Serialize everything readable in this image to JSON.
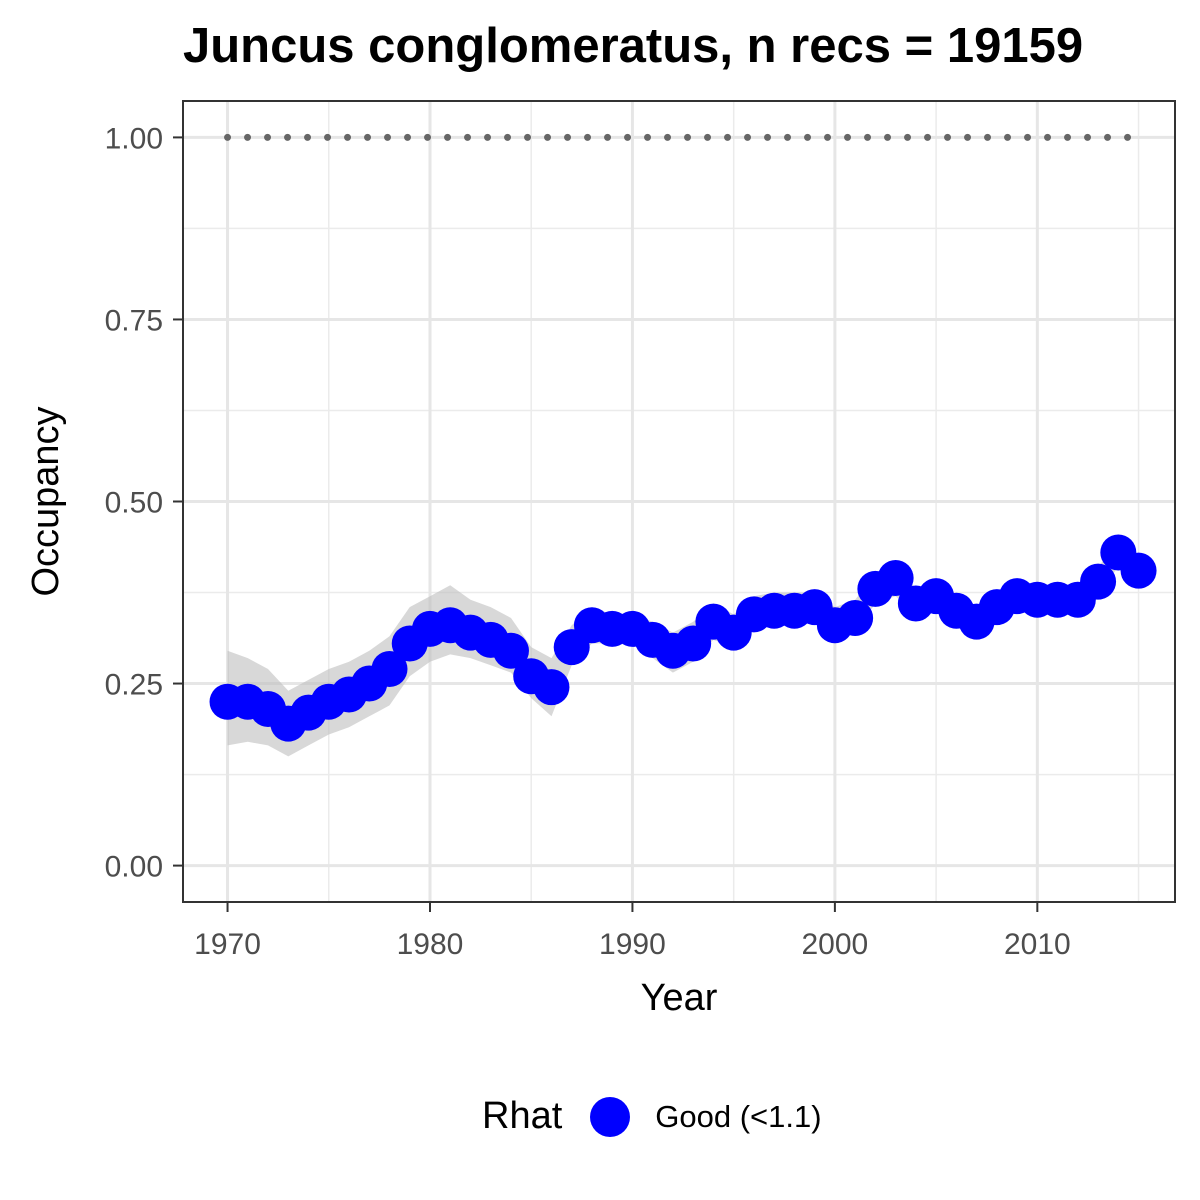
{
  "chart_data": {
    "type": "line",
    "title": "Juncus conglomeratus, n recs = 19159",
    "xlabel": "Year",
    "ylabel": "Occupancy",
    "xlim": [
      1967.8,
      2016.8
    ],
    "ylim": [
      -0.05,
      1.05
    ],
    "x_ticks": [
      1970,
      1980,
      1990,
      2000,
      2010
    ],
    "y_ticks": [
      0,
      0.25,
      0.5,
      0.75,
      1.0
    ],
    "x_tick_labels": [
      "1970",
      "1980",
      "1990",
      "2000",
      "2010"
    ],
    "y_tick_labels": [
      "0.00",
      "0.25",
      "0.50",
      "0.75",
      "1.00"
    ],
    "grid": true,
    "legend": {
      "title": "Rhat",
      "placement": "bottom",
      "entries": [
        {
          "label": "Good (<1.1)",
          "color": "#0000ff"
        }
      ]
    },
    "colors": {
      "points": "#0000ff",
      "ribbon": "#bebebe",
      "reference": "#666666"
    },
    "reference_line": {
      "y": 1.0,
      "style": "dotted"
    },
    "x": [
      1970,
      1971,
      1972,
      1973,
      1974,
      1975,
      1976,
      1977,
      1978,
      1979,
      1980,
      1981,
      1982,
      1983,
      1984,
      1985,
      1986,
      1987,
      1988,
      1989,
      1990,
      1991,
      1992,
      1993,
      1994,
      1995,
      1996,
      1997,
      1998,
      1999,
      2000,
      2001,
      2002,
      2003,
      2004,
      2005,
      2006,
      2007,
      2008,
      2009,
      2010,
      2011,
      2012,
      2013,
      2014,
      2015
    ],
    "series": [
      {
        "name": "Good (<1.1)",
        "values": [
          0.225,
          0.225,
          0.215,
          0.195,
          0.21,
          0.225,
          0.235,
          0.25,
          0.27,
          0.305,
          0.325,
          0.33,
          0.32,
          0.31,
          0.295,
          0.26,
          0.245,
          0.3,
          0.33,
          0.325,
          0.325,
          0.31,
          0.295,
          0.305,
          0.335,
          0.32,
          0.345,
          0.35,
          0.35,
          0.355,
          0.33,
          0.34,
          0.38,
          0.395,
          0.36,
          0.37,
          0.35,
          0.335,
          0.355,
          0.37,
          0.365,
          0.365,
          0.365,
          0.39,
          0.43,
          0.405
        ],
        "lower": [
          0.165,
          0.17,
          0.165,
          0.15,
          0.165,
          0.18,
          0.19,
          0.205,
          0.22,
          0.26,
          0.28,
          0.29,
          0.285,
          0.275,
          0.265,
          0.23,
          0.205,
          0.275,
          0.305,
          0.305,
          0.305,
          0.285,
          0.265,
          0.28,
          0.31,
          0.3,
          0.325,
          0.33,
          0.33,
          0.335,
          0.305,
          0.32,
          0.36,
          0.37,
          0.345,
          0.35,
          0.335,
          0.32,
          0.34,
          0.355,
          0.35,
          0.35,
          0.35,
          0.375,
          0.41,
          0.395
        ],
        "upper": [
          0.295,
          0.285,
          0.27,
          0.24,
          0.255,
          0.27,
          0.28,
          0.295,
          0.315,
          0.355,
          0.37,
          0.385,
          0.365,
          0.355,
          0.34,
          0.3,
          0.285,
          0.33,
          0.355,
          0.345,
          0.345,
          0.335,
          0.32,
          0.335,
          0.36,
          0.345,
          0.37,
          0.375,
          0.375,
          0.375,
          0.355,
          0.365,
          0.4,
          0.415,
          0.38,
          0.39,
          0.37,
          0.355,
          0.375,
          0.385,
          0.385,
          0.385,
          0.385,
          0.41,
          0.445,
          0.42
        ]
      }
    ]
  }
}
